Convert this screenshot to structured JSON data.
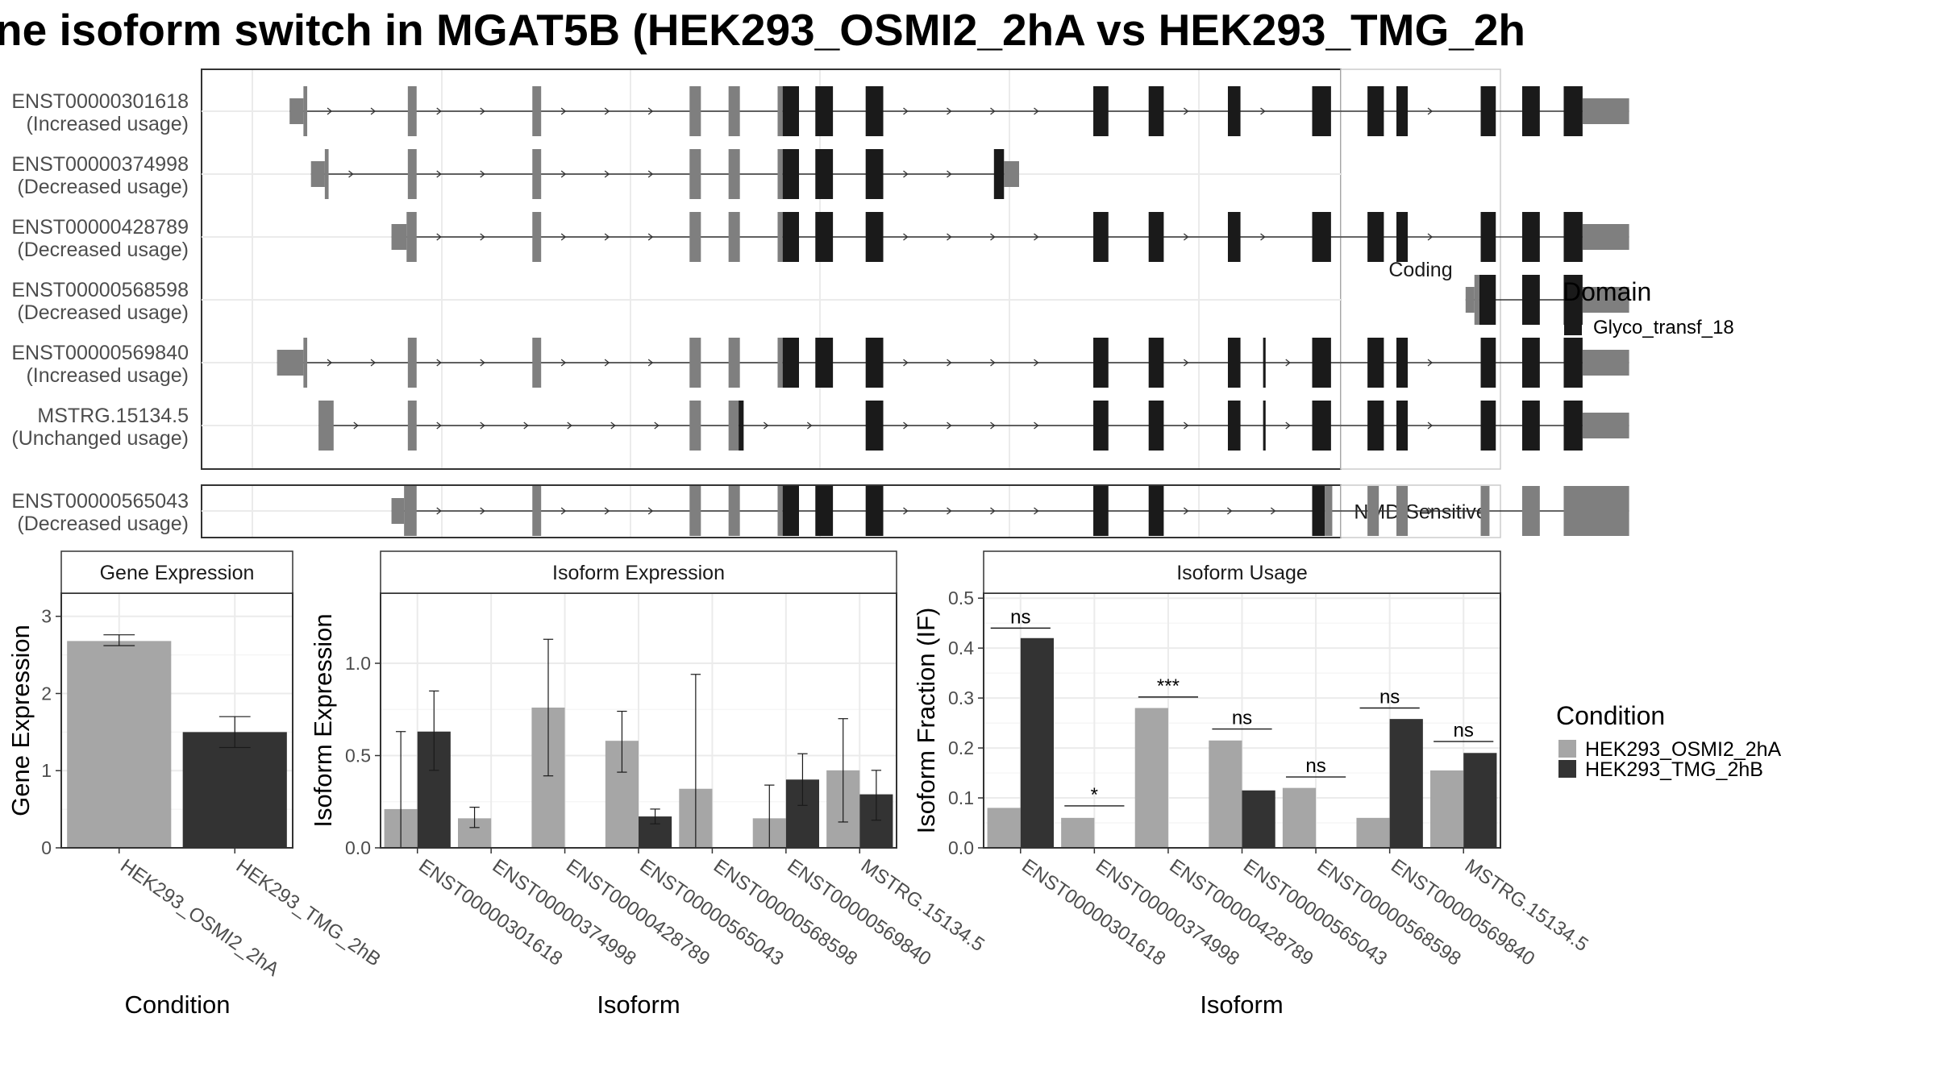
{
  "title": "ne isoform switch in MGAT5B (HEK293_OSMI2_2hA vs HEK293_TMG_2h",
  "colors": {
    "exon": "#7f7f7f",
    "domain": "#1a1a1a",
    "cond_a": "#a6a6a6",
    "cond_b": "#333333",
    "panel_border": "#333333",
    "strip_fill": "#ffffff",
    "grid": "#ebebeb"
  },
  "transcript_panels": [
    {
      "strip": "Coding"
    },
    {
      "strip": "NMD Sensitive"
    }
  ],
  "transcripts": [
    {
      "id": "ENST00000301618",
      "usage": "(Increased usage)",
      "panel": 0,
      "exons": [
        [
          70,
          81,
          "u"
        ],
        [
          81,
          84,
          "c"
        ],
        [
          164,
          171,
          "c"
        ],
        [
          263,
          270,
          "c"
        ],
        [
          388,
          397,
          "c"
        ],
        [
          419,
          428,
          "c"
        ],
        [
          458,
          462,
          "c"
        ],
        [
          462,
          475,
          "d"
        ],
        [
          488,
          502,
          "d"
        ],
        [
          528,
          542,
          "d"
        ],
        [
          709,
          721,
          "d"
        ],
        [
          753,
          765,
          "d"
        ],
        [
          816,
          826,
          "d"
        ],
        [
          883,
          898,
          "d"
        ],
        [
          927,
          940,
          "d"
        ],
        [
          950,
          959,
          "d"
        ],
        [
          1017,
          1029,
          "d"
        ],
        [
          1050,
          1064,
          "d"
        ],
        [
          1083,
          1098,
          "d"
        ],
        [
          1098,
          1135,
          "u"
        ]
      ]
    },
    {
      "id": "ENST00000374998",
      "usage": "(Decreased usage)",
      "panel": 0,
      "exons": [
        [
          87,
          98,
          "u"
        ],
        [
          98,
          101,
          "c"
        ],
        [
          164,
          171,
          "c"
        ],
        [
          263,
          270,
          "c"
        ],
        [
          388,
          397,
          "c"
        ],
        [
          419,
          428,
          "c"
        ],
        [
          458,
          462,
          "c"
        ],
        [
          462,
          475,
          "d"
        ],
        [
          488,
          502,
          "d"
        ],
        [
          528,
          542,
          "d"
        ],
        [
          630,
          638,
          "d"
        ],
        [
          638,
          650,
          "u"
        ]
      ]
    },
    {
      "id": "ENST00000428789",
      "usage": "(Decreased usage)",
      "panel": 0,
      "exons": [
        [
          151,
          163,
          "u"
        ],
        [
          163,
          171,
          "c"
        ],
        [
          263,
          270,
          "c"
        ],
        [
          388,
          397,
          "c"
        ],
        [
          419,
          428,
          "c"
        ],
        [
          458,
          462,
          "c"
        ],
        [
          462,
          475,
          "d"
        ],
        [
          488,
          502,
          "d"
        ],
        [
          528,
          542,
          "d"
        ],
        [
          709,
          721,
          "d"
        ],
        [
          753,
          765,
          "d"
        ],
        [
          816,
          826,
          "d"
        ],
        [
          883,
          898,
          "d"
        ],
        [
          927,
          940,
          "d"
        ],
        [
          950,
          959,
          "d"
        ],
        [
          1017,
          1029,
          "d"
        ],
        [
          1050,
          1064,
          "d"
        ],
        [
          1083,
          1098,
          "d"
        ],
        [
          1098,
          1135,
          "u"
        ]
      ]
    },
    {
      "id": "ENST00000568598",
      "usage": "(Decreased usage)",
      "panel": 0,
      "exons": [
        [
          1005,
          1012,
          "u"
        ],
        [
          1012,
          1016,
          "c"
        ],
        [
          1016,
          1029,
          "d"
        ],
        [
          1050,
          1064,
          "d"
        ],
        [
          1083,
          1098,
          "d"
        ],
        [
          1098,
          1135,
          "u"
        ]
      ]
    },
    {
      "id": "ENST00000569840",
      "usage": "(Increased usage)",
      "panel": 0,
      "exons": [
        [
          60,
          81,
          "u"
        ],
        [
          81,
          84,
          "c"
        ],
        [
          164,
          171,
          "c"
        ],
        [
          263,
          270,
          "c"
        ],
        [
          388,
          397,
          "c"
        ],
        [
          419,
          428,
          "c"
        ],
        [
          458,
          462,
          "c"
        ],
        [
          462,
          475,
          "d"
        ],
        [
          488,
          502,
          "d"
        ],
        [
          528,
          542,
          "d"
        ],
        [
          709,
          721,
          "d"
        ],
        [
          753,
          765,
          "d"
        ],
        [
          816,
          826,
          "d"
        ],
        [
          844,
          846,
          "d"
        ],
        [
          883,
          898,
          "d"
        ],
        [
          927,
          940,
          "d"
        ],
        [
          950,
          959,
          "d"
        ],
        [
          1017,
          1029,
          "d"
        ],
        [
          1050,
          1064,
          "d"
        ],
        [
          1083,
          1098,
          "d"
        ],
        [
          1098,
          1135,
          "u"
        ]
      ]
    },
    {
      "id": "MSTRG.15134.5",
      "usage": "(Unchanged usage)",
      "panel": 0,
      "exons": [
        [
          93,
          105,
          "c"
        ],
        [
          164,
          171,
          "c"
        ],
        [
          388,
          397,
          "c"
        ],
        [
          419,
          427,
          "c"
        ],
        [
          427,
          431,
          "d"
        ],
        [
          528,
          542,
          "d"
        ],
        [
          709,
          721,
          "d"
        ],
        [
          753,
          765,
          "d"
        ],
        [
          816,
          826,
          "d"
        ],
        [
          844,
          846,
          "d"
        ],
        [
          883,
          898,
          "d"
        ],
        [
          927,
          940,
          "d"
        ],
        [
          950,
          959,
          "d"
        ],
        [
          1017,
          1029,
          "d"
        ],
        [
          1050,
          1064,
          "d"
        ],
        [
          1083,
          1098,
          "d"
        ],
        [
          1098,
          1135,
          "u"
        ]
      ]
    },
    {
      "id": "ENST00000565043",
      "usage": "(Decreased usage)",
      "panel": 1,
      "exons": [
        [
          151,
          161,
          "u"
        ],
        [
          161,
          171,
          "c"
        ],
        [
          263,
          270,
          "c"
        ],
        [
          388,
          397,
          "c"
        ],
        [
          419,
          428,
          "c"
        ],
        [
          458,
          462,
          "c"
        ],
        [
          462,
          475,
          "d"
        ],
        [
          488,
          502,
          "d"
        ],
        [
          528,
          542,
          "d"
        ],
        [
          709,
          721,
          "d"
        ],
        [
          753,
          765,
          "d"
        ],
        [
          883,
          893,
          "d"
        ],
        [
          893,
          899,
          "c"
        ],
        [
          927,
          936,
          "c"
        ],
        [
          950,
          959,
          "c"
        ],
        [
          1017,
          1024,
          "c"
        ],
        [
          1050,
          1064,
          "c"
        ],
        [
          1083,
          1135,
          "c"
        ]
      ]
    }
  ],
  "legend_domain": {
    "title": "Domain",
    "items": [
      "Glyco_transf_18"
    ]
  },
  "legend_condition": {
    "title": "Condition",
    "items": [
      "HEK293_OSMI2_2hA",
      "HEK293_TMG_2hB"
    ]
  },
  "chart_data": [
    {
      "type": "bar",
      "title": "Gene Expression",
      "xlabel": "Condition",
      "ylabel": "Gene Expression",
      "categories": [
        "HEK293_OSMI2_2hA",
        "HEK293_TMG_2hB"
      ],
      "values": [
        2.68,
        1.5
      ],
      "errors": [
        [
          2.62,
          2.76
        ],
        [
          1.3,
          1.7
        ]
      ],
      "ylim": [
        0,
        3.3
      ],
      "yticks": [
        "0",
        "1",
        "2",
        "3"
      ],
      "ytick_values": [
        0,
        1,
        2,
        3
      ]
    },
    {
      "type": "bar",
      "title": "Isoform Expression",
      "xlabel": "Isoform",
      "ylabel": "Isoform Expression",
      "categories": [
        "ENST00000301618",
        "ENST00000374998",
        "ENST00000428789",
        "ENST00000565043",
        "ENST00000568598",
        "ENST00000569840",
        "MSTRG.15134.5"
      ],
      "series": [
        {
          "name": "HEK293_OSMI2_2hA",
          "values": [
            0.21,
            0.16,
            0.76,
            0.58,
            0.32,
            0.16,
            0.42
          ],
          "errors": [
            [
              0,
              0.63
            ],
            [
              0.11,
              0.22
            ],
            [
              0.39,
              1.13
            ],
            [
              0.41,
              0.74
            ],
            [
              0,
              0.94
            ],
            [
              0,
              0.34
            ],
            [
              0.14,
              0.7
            ]
          ]
        },
        {
          "name": "HEK293_TMG_2hB",
          "values": [
            0.63,
            0.0,
            0.0,
            0.17,
            0.0,
            0.37,
            0.29
          ],
          "errors": [
            [
              0.42,
              0.85
            ],
            [
              0,
              0
            ],
            [
              0,
              0
            ],
            [
              0.13,
              0.21
            ],
            [
              0,
              0
            ],
            [
              0.23,
              0.51
            ],
            [
              0.15,
              0.42
            ]
          ]
        }
      ],
      "ylim": [
        0,
        1.38
      ],
      "yticks": [
        "0.0",
        "0.5",
        "1.0"
      ],
      "ytick_values": [
        0,
        0.5,
        1.0
      ]
    },
    {
      "type": "bar",
      "title": "Isoform Usage",
      "xlabel": "Isoform",
      "ylabel": "Isoform Fraction (IF)",
      "categories": [
        "ENST00000301618",
        "ENST00000374998",
        "ENST00000428789",
        "ENST00000565043",
        "ENST00000568598",
        "ENST00000569840",
        "MSTRG.15134.5"
      ],
      "series": [
        {
          "name": "HEK293_OSMI2_2hA",
          "values": [
            0.08,
            0.06,
            0.28,
            0.215,
            0.12,
            0.06,
            0.155
          ]
        },
        {
          "name": "HEK293_TMG_2hB",
          "values": [
            0.42,
            0.0,
            0.0,
            0.115,
            0.0,
            0.258,
            0.19
          ]
        }
      ],
      "significance": [
        {
          "label": "ns",
          "y": 0.44
        },
        {
          "label": "*",
          "y": 0.084
        },
        {
          "label": "***",
          "y": 0.302
        },
        {
          "label": "ns",
          "y": 0.238
        },
        {
          "label": "ns",
          "y": 0.142
        },
        {
          "label": "ns",
          "y": 0.28
        },
        {
          "label": "ns",
          "y": 0.213
        }
      ],
      "ylim": [
        0,
        0.51
      ],
      "yticks": [
        "0.0",
        "0.1",
        "0.2",
        "0.3",
        "0.4",
        "0.5"
      ],
      "ytick_values": [
        0,
        0.1,
        0.2,
        0.3,
        0.4,
        0.5
      ]
    }
  ]
}
